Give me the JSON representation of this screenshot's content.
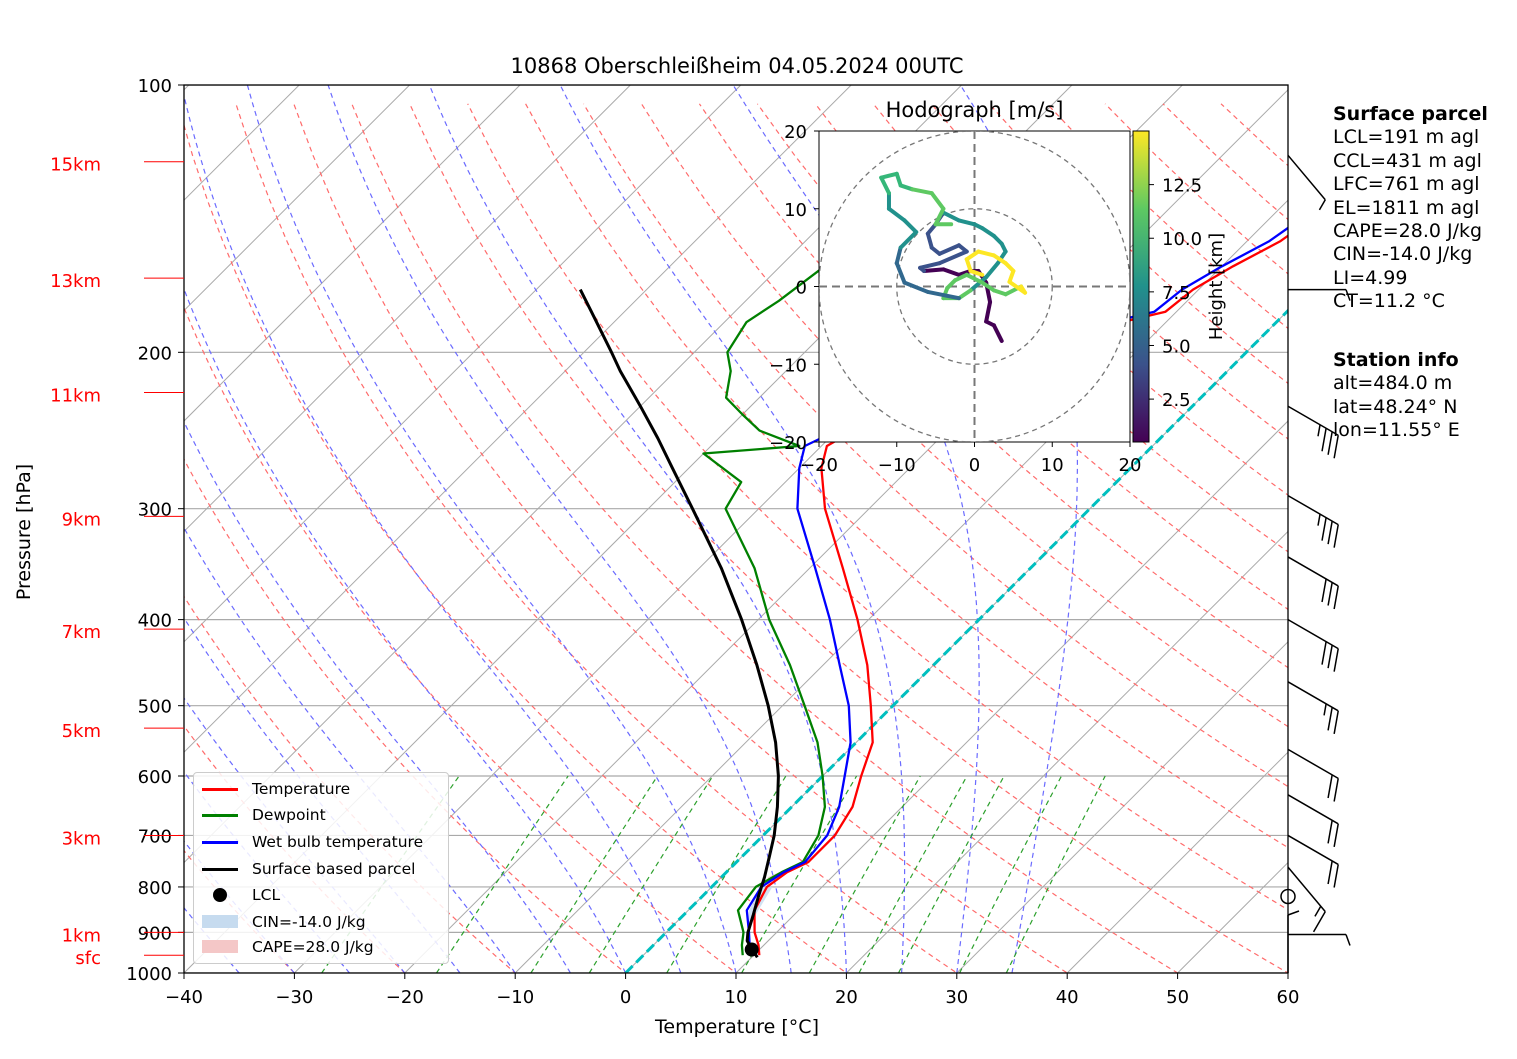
{
  "chart_data": {
    "type": "line",
    "title": "10868 Oberschleißheim 04.05.2024 00UTC",
    "xlabel": "Temperature [°C]",
    "ylabel": "Pressure [hPa]",
    "xlim": [
      -40,
      60
    ],
    "ylim": [
      1000,
      100
    ],
    "y_scale": "log",
    "skew": "skew-T",
    "x_ticks": [
      "−40",
      "−30",
      "−20",
      "−10",
      "0",
      "10",
      "20",
      "30",
      "40",
      "50",
      "60"
    ],
    "y_ticks": [
      "100",
      "200",
      "300",
      "400",
      "500",
      "600",
      "700",
      "800",
      "900",
      "1000"
    ],
    "height_labels": [
      {
        "label": "sfc",
        "p": 955
      },
      {
        "label": "1km",
        "p": 900
      },
      {
        "label": "3km",
        "p": 700
      },
      {
        "label": "5km",
        "p": 530
      },
      {
        "label": "7km",
        "p": 410
      },
      {
        "label": "9km",
        "p": 306
      },
      {
        "label": "11km",
        "p": 222
      },
      {
        "label": "13km",
        "p": 165
      },
      {
        "label": "15km",
        "p": 122
      }
    ],
    "grid": true,
    "legend_position": "lower-left",
    "series": [
      {
        "name": "Temperature",
        "color": "#ff0000",
        "p": [
          955,
          930,
          900,
          850,
          800,
          770,
          750,
          700,
          650,
          600,
          550,
          500,
          450,
          400,
          350,
          300,
          270,
          255,
          245,
          235,
          225,
          210,
          200,
          185,
          180,
          170,
          160,
          150,
          140,
          130,
          122
        ],
        "t": [
          10.5,
          9.5,
          8,
          6,
          5,
          5.5,
          6.5,
          6.5,
          5.5,
          3.5,
          1.5,
          -2,
          -6,
          -11,
          -17,
          -24,
          -28,
          -29.5,
          -28.5,
          -26,
          -22,
          -18.5,
          -16,
          -14,
          -11,
          -10.5,
          -9,
          -7,
          -6,
          -4,
          -3
        ]
      },
      {
        "name": "Dewpoint",
        "color": "#008000",
        "p": [
          955,
          930,
          900,
          850,
          800,
          770,
          750,
          700,
          650,
          600,
          550,
          500,
          450,
          400,
          350,
          300,
          280,
          260,
          255,
          245,
          235,
          225,
          210,
          200,
          185,
          175,
          160,
          150,
          140,
          130,
          122
        ],
        "t": [
          9,
          8,
          7,
          4.5,
          4,
          5,
          6,
          5,
          3,
          0,
          -3.5,
          -8,
          -13,
          -19,
          -25,
          -33,
          -34,
          -40,
          -32,
          -37,
          -40,
          -43,
          -45,
          -47,
          -48,
          -47,
          -46,
          -45,
          -44,
          -42,
          -41
        ]
      },
      {
        "name": "Wet bulb temperature",
        "color": "#0000ff",
        "p": [
          955,
          930,
          900,
          850,
          800,
          770,
          750,
          700,
          650,
          600,
          550,
          500,
          450,
          400,
          350,
          300,
          270,
          255,
          245,
          235,
          225,
          210,
          200,
          185,
          180,
          170,
          160,
          150,
          140,
          130,
          122
        ],
        "t": [
          9.5,
          8.7,
          7.5,
          5.3,
          4.5,
          5.2,
          6.2,
          5.8,
          4.3,
          2,
          -0.5,
          -4,
          -8.5,
          -13.5,
          -19.5,
          -26.5,
          -30,
          -31.5,
          -30,
          -28,
          -24,
          -20,
          -17.5,
          -15,
          -12,
          -11.5,
          -10,
          -8,
          -7,
          -5,
          -4
        ]
      },
      {
        "name": "Surface based parcel",
        "color": "#000000",
        "p": [
          960,
          940,
          920,
          900,
          860,
          820,
          780,
          740,
          700,
          650,
          600,
          550,
          500,
          450,
          400,
          350,
          300,
          270,
          250,
          230,
          210,
          200,
          180,
          170
        ],
        "t": [
          10.5,
          9.3,
          8.1,
          7.4,
          6.3,
          5.1,
          3.9,
          2.5,
          1,
          -1.3,
          -4,
          -7.3,
          -11.3,
          -16,
          -21.5,
          -28,
          -36,
          -41.5,
          -45.5,
          -50,
          -55,
          -57.5,
          -63,
          -66
        ]
      }
    ],
    "lcl_point": {
      "label": "LCL",
      "p": 941,
      "t": 9.3
    },
    "legend": [
      {
        "label": "Temperature",
        "kind": "line",
        "color": "#ff0000"
      },
      {
        "label": "Dewpoint",
        "kind": "line",
        "color": "#008000"
      },
      {
        "label": "Wet bulb temperature",
        "kind": "line",
        "color": "#0000ff"
      },
      {
        "label": "Surface based parcel",
        "kind": "line",
        "color": "#000000"
      },
      {
        "label": "LCL",
        "kind": "dot",
        "color": "#000000"
      },
      {
        "label": "CIN=-14.0 J/kg",
        "kind": "patch",
        "color": "#c6dbef"
      },
      {
        "label": "CAPE=28.0 J/kg",
        "kind": "patch",
        "color": "#f4c7c7"
      }
    ],
    "hodograph": {
      "title": "Hodograph [m/s]",
      "xlim": [
        -20,
        20
      ],
      "ylim": [
        -20,
        20
      ],
      "ticks": [
        "−20",
        "−10",
        "0",
        "10",
        "20"
      ],
      "colorbar_label": "Height [km]",
      "colorbar_ticks": [
        "2.5",
        "5.0",
        "7.5",
        "10.0",
        "12.5"
      ],
      "colormap": "viridis",
      "range_km": [
        0.5,
        15
      ],
      "trace": [
        [
          3.5,
          -7
        ],
        [
          2.5,
          -5
        ],
        [
          1.5,
          -4.5
        ],
        [
          2,
          -2
        ],
        [
          1.5,
          0.5
        ],
        [
          0.5,
          2
        ],
        [
          -0.5,
          2
        ],
        [
          -2,
          1.5
        ],
        [
          -4,
          2.2
        ],
        [
          -6.5,
          2
        ],
        [
          -7,
          2.4
        ],
        [
          -4.5,
          3
        ],
        [
          -1,
          4.5
        ],
        [
          -2,
          5.3
        ],
        [
          -4.5,
          4.2
        ],
        [
          -5.5,
          5
        ],
        [
          -6,
          6.8
        ],
        [
          -5,
          8
        ],
        [
          -4,
          9.5
        ],
        [
          -2,
          8.5
        ],
        [
          0,
          8
        ],
        [
          1,
          7.5
        ],
        [
          2.5,
          6.5
        ],
        [
          3.5,
          5.5
        ],
        [
          4,
          4.5
        ],
        [
          3,
          3
        ],
        [
          1.5,
          1.2
        ],
        [
          -0.5,
          -0.5
        ],
        [
          -2,
          -1.5
        ],
        [
          -4,
          -1.5
        ],
        [
          -3.5,
          -0.2
        ],
        [
          -2.5,
          0.8
        ],
        [
          -1,
          1.5
        ],
        [
          1,
          0.5
        ],
        [
          2.5,
          -0.5
        ],
        [
          4,
          -1
        ],
        [
          6,
          0
        ],
        [
          6.5,
          -0.8
        ],
        [
          4.5,
          0.6
        ],
        [
          5,
          2
        ],
        [
          4,
          3
        ],
        [
          2.5,
          4
        ],
        [
          0.5,
          4.5
        ],
        [
          -1,
          3.5
        ],
        [
          -0.5,
          2
        ],
        [
          1,
          1.5
        ]
      ],
      "trace2": [
        [
          -2,
          -1.5
        ],
        [
          -6,
          -0.7
        ],
        [
          -9,
          0.5
        ],
        [
          -10,
          3
        ],
        [
          -9.5,
          5
        ],
        [
          -7.5,
          7
        ],
        [
          -9,
          8.5
        ],
        [
          -11,
          10
        ],
        [
          -11,
          12
        ],
        [
          -12,
          14
        ],
        [
          -10,
          14.5
        ],
        [
          -9.5,
          13
        ],
        [
          -8,
          12.5
        ],
        [
          -5.5,
          12
        ],
        [
          -4,
          10
        ],
        [
          -5,
          8
        ],
        [
          -3,
          8
        ]
      ]
    },
    "wind_barbs": [
      {
        "p": 1000,
        "speed_kt": 5,
        "dir": 180
      },
      {
        "p": 905,
        "speed_kt": 5,
        "dir": 270
      },
      {
        "p": 820,
        "speed_kt": 0,
        "dir": 0
      },
      {
        "p": 760,
        "speed_kt": 15,
        "dir": 320
      },
      {
        "p": 700,
        "speed_kt": 20,
        "dir": 300
      },
      {
        "p": 630,
        "speed_kt": 20,
        "dir": 300
      },
      {
        "p": 560,
        "speed_kt": 20,
        "dir": 300
      },
      {
        "p": 470,
        "speed_kt": 25,
        "dir": 300
      },
      {
        "p": 400,
        "speed_kt": 30,
        "dir": 300
      },
      {
        "p": 340,
        "speed_kt": 30,
        "dir": 300
      },
      {
        "p": 290,
        "speed_kt": 35,
        "dir": 300
      },
      {
        "p": 230,
        "speed_kt": 35,
        "dir": 300
      },
      {
        "p": 170,
        "speed_kt": 5,
        "dir": 270
      },
      {
        "p": 120,
        "speed_kt": 5,
        "dir": 320
      }
    ]
  },
  "surface_parcel": {
    "heading": "Surface parcel",
    "lines": [
      "LCL=191 m agl",
      "CCL=431 m agl",
      "LFC=761 m agl",
      "EL=1811 m agl",
      "CAPE=28.0 J/kg",
      "CIN=-14.0 J/kg",
      "LI=4.99",
      "CT=11.2 °C"
    ]
  },
  "station_info": {
    "heading": "Station info",
    "lines": [
      "alt=484.0 m",
      "lat=48.24° N",
      "lon=11.55° E"
    ]
  },
  "colors": {
    "dry_adiabat": "#ff6b6b",
    "moist_adiabat": "#6b6bff",
    "mixing_ratio": "#2ca02c",
    "freezing_line": "#00bfbf",
    "isotherm": "#a9a9a9",
    "height_label": "#ff0000"
  }
}
